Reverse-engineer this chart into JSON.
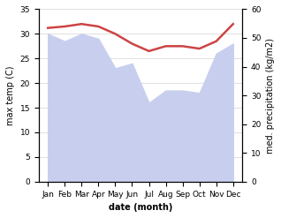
{
  "months": [
    "Jan",
    "Feb",
    "Mar",
    "Apr",
    "May",
    "Jun",
    "Jul",
    "Aug",
    "Sep",
    "Oct",
    "Nov",
    "Dec"
  ],
  "max_temp": [
    31.2,
    31.5,
    32.0,
    31.5,
    30.0,
    28.0,
    26.5,
    27.5,
    27.5,
    27.0,
    28.5,
    32.0
  ],
  "precipitation_left_scale": [
    30,
    28.5,
    30,
    29,
    23,
    24,
    16,
    18.5,
    18.5,
    18,
    26,
    28
  ],
  "temp_color": "#cc4444",
  "precip_fill_color": "#c8cfee",
  "bg_color": "#ffffff",
  "ylabel_left": "max temp (C)",
  "ylabel_right": "med. precipitation (kg/m2)",
  "xlabel": "date (month)",
  "ylim_left": [
    0,
    35
  ],
  "ylim_right": [
    0,
    60
  ],
  "yticks_left": [
    0,
    5,
    10,
    15,
    20,
    25,
    30,
    35
  ],
  "yticks_right": [
    0,
    10,
    20,
    30,
    40,
    50,
    60
  ],
  "temp_linewidth": 1.8
}
